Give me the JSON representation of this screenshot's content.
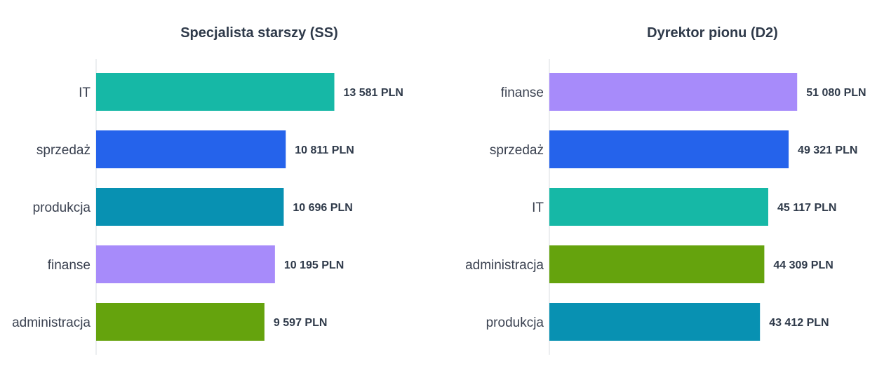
{
  "chart_data": [
    {
      "type": "bar",
      "orientation": "horizontal",
      "title": "Specjalista starszy (SS)",
      "categories": [
        "IT",
        "sprzedaż",
        "produkcja",
        "finanse",
        "administracja"
      ],
      "values": [
        13581,
        10811,
        10696,
        10195,
        9597
      ],
      "value_labels": [
        "13 581 PLN",
        "10 811 PLN",
        "10 696 PLN",
        "10 195 PLN",
        "9 597 PLN"
      ],
      "colors": [
        "#16b8a6",
        "#2563eb",
        "#0891b2",
        "#a78bfa",
        "#65a30d"
      ],
      "xlim": [
        0,
        15000
      ],
      "grid": false
    },
    {
      "type": "bar",
      "orientation": "horizontal",
      "title": "Dyrektor pionu (D2)",
      "categories": [
        "finanse",
        "sprzedaż",
        "IT",
        "administracja",
        "produkcja"
      ],
      "values": [
        51080,
        49321,
        45117,
        44309,
        43412
      ],
      "value_labels": [
        "51 080 PLN",
        "49 321 PLN",
        "45 117 PLN",
        "44 309 PLN",
        "43 412 PLN"
      ],
      "colors": [
        "#a78bfa",
        "#2563eb",
        "#16b8a6",
        "#65a30d",
        "#0891b2"
      ],
      "xlim": [
        0,
        56400
      ],
      "grid": false
    }
  ]
}
